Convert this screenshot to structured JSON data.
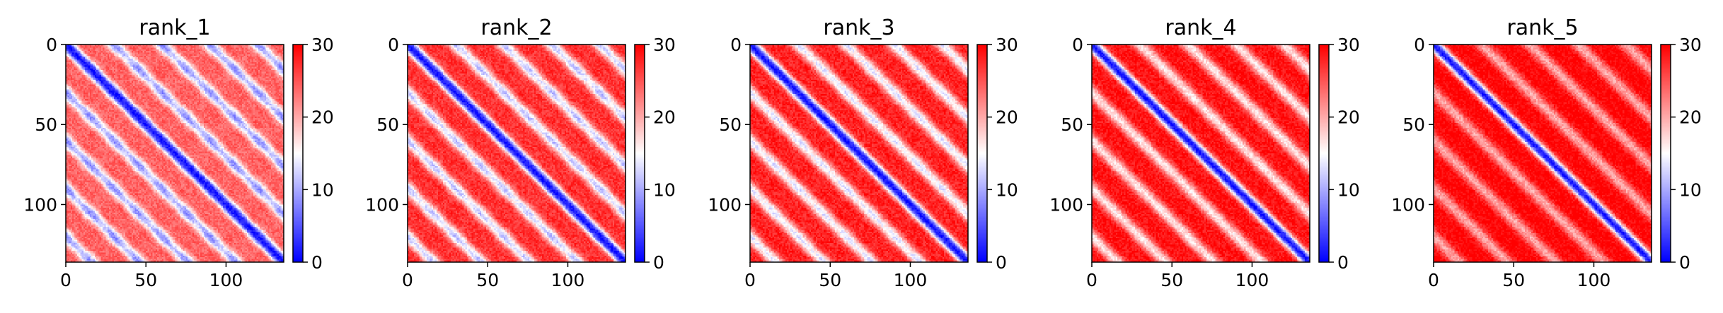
{
  "chart_data": [
    {
      "type": "heatmap",
      "title": "rank_1",
      "grid_size": 136,
      "xticks": [
        "0",
        "50",
        "100"
      ],
      "yticks": [
        "0",
        "50",
        "100"
      ],
      "colorbar": {
        "colormap": "bwr",
        "min": 0,
        "max": 30,
        "ticks": [
          "0",
          "10",
          "20",
          "30"
        ]
      },
      "xlim": [
        0,
        136
      ],
      "ylim": [
        136,
        0
      ],
      "diagonal_value": 1,
      "band_period": 30,
      "band_trough_value": 8,
      "background_value": 24,
      "off_diagonal_max": 28
    },
    {
      "type": "heatmap",
      "title": "rank_2",
      "grid_size": 136,
      "xticks": [
        "0",
        "50",
        "100"
      ],
      "yticks": [
        "0",
        "50",
        "100"
      ],
      "colorbar": {
        "colormap": "bwr",
        "min": 0,
        "max": 30,
        "ticks": [
          "0",
          "10",
          "20",
          "30"
        ]
      },
      "xlim": [
        0,
        136
      ],
      "ylim": [
        136,
        0
      ],
      "diagonal_value": 1,
      "band_period": 30,
      "band_trough_value": 11,
      "background_value": 27,
      "off_diagonal_max": 30
    },
    {
      "type": "heatmap",
      "title": "rank_3",
      "grid_size": 136,
      "xticks": [
        "0",
        "50",
        "100"
      ],
      "yticks": [
        "0",
        "50",
        "100"
      ],
      "colorbar": {
        "colormap": "bwr",
        "min": 0,
        "max": 30,
        "ticks": [
          "0",
          "10",
          "20",
          "30"
        ]
      },
      "xlim": [
        0,
        136
      ],
      "ylim": [
        136,
        0
      ],
      "diagonal_value": 1,
      "band_period": 30,
      "band_trough_value": 13,
      "background_value": 28,
      "off_diagonal_max": 30
    },
    {
      "type": "heatmap",
      "title": "rank_4",
      "grid_size": 136,
      "xticks": [
        "0",
        "50",
        "100"
      ],
      "yticks": [
        "0",
        "50",
        "100"
      ],
      "colorbar": {
        "colormap": "bwr",
        "min": 0,
        "max": 30,
        "ticks": [
          "0",
          "10",
          "20",
          "30"
        ]
      },
      "xlim": [
        0,
        136
      ],
      "ylim": [
        136,
        0
      ],
      "diagonal_value": 1,
      "band_period": 30,
      "band_trough_value": 16,
      "background_value": 29,
      "off_diagonal_max": 30
    },
    {
      "type": "heatmap",
      "title": "rank_5",
      "grid_size": 136,
      "xticks": [
        "0",
        "50",
        "100"
      ],
      "yticks": [
        "0",
        "50",
        "100"
      ],
      "colorbar": {
        "colormap": "bwr",
        "min": 0,
        "max": 30,
        "ticks": [
          "0",
          "10",
          "20",
          "30"
        ]
      },
      "xlim": [
        0,
        136
      ],
      "ylim": [
        136,
        0
      ],
      "diagonal_value": 1,
      "band_period": 30,
      "band_trough_value": 20,
      "background_value": 30,
      "off_diagonal_max": 30
    }
  ]
}
